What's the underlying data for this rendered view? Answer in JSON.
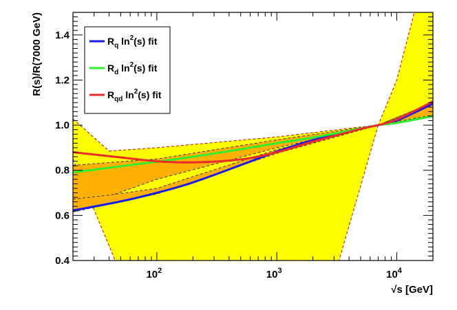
{
  "chart_data": {
    "type": "line",
    "title": "",
    "xlabel": "√s [GeV]",
    "ylabel": "R(s)/R(7000 GeV)",
    "xscale": "log",
    "xlim": [
      20,
      20000
    ],
    "ylim": [
      0.4,
      1.5
    ],
    "x_ticks": [
      {
        "value": 100,
        "base": "10",
        "exp": "2"
      },
      {
        "value": 1000,
        "base": "10",
        "exp": "3"
      },
      {
        "value": 10000,
        "base": "10",
        "exp": "4"
      }
    ],
    "y_ticks": [
      "0.4",
      "0.6",
      "0.8",
      "1.0",
      "1.2",
      "1.4"
    ],
    "legend_position": "top-left",
    "legend": [
      {
        "base": "R",
        "sub": "q",
        "text": "ln",
        "sup": "2",
        "tail": "(s) fit",
        "color": "#1a1aee"
      },
      {
        "base": "R",
        "sub": "d",
        "text": "ln",
        "sup": "2",
        "tail": "(s) fit",
        "color": "#2eee2e"
      },
      {
        "base": "R",
        "sub": "qd",
        "text": "ln",
        "sup": "2",
        "tail": "(s) fit",
        "color": "#ee2a2a"
      }
    ],
    "series": [
      {
        "name": "R_q ln²(s) fit",
        "color": "#1a1aee",
        "x": [
          20,
          50,
          100,
          200,
          500,
          1000,
          2000,
          5000,
          7000,
          10000,
          20000
        ],
        "y": [
          0.622,
          0.662,
          0.7,
          0.746,
          0.823,
          0.883,
          0.934,
          0.985,
          1.0,
          1.02,
          1.095
        ]
      },
      {
        "name": "R_d ln²(s) fit",
        "color": "#2eee2e",
        "x": [
          20,
          50,
          100,
          200,
          500,
          1000,
          2000,
          5000,
          7000,
          10000,
          20000
        ],
        "y": [
          0.79,
          0.818,
          0.838,
          0.86,
          0.893,
          0.92,
          0.945,
          0.985,
          1.0,
          1.01,
          1.04
        ]
      },
      {
        "name": "R_qd ln²(s) fit",
        "color": "#ee2a2a",
        "x": [
          20,
          50,
          100,
          200,
          500,
          1000,
          2000,
          5000,
          7000,
          10000,
          20000
        ],
        "y": [
          0.88,
          0.857,
          0.84,
          0.835,
          0.848,
          0.88,
          0.927,
          0.983,
          1.0,
          1.025,
          1.105
        ]
      }
    ],
    "bands": [
      {
        "color": "#ffff00",
        "edge_color": "#cc0000",
        "upper": [
          [
            20,
            1.028
          ],
          [
            40,
            0.885
          ],
          [
            100,
            0.9
          ],
          [
            1000,
            0.948
          ],
          [
            5000,
            0.992
          ],
          [
            7000,
            1.0
          ],
          [
            10000,
            1.2
          ],
          [
            14000,
            1.5
          ],
          [
            20000,
            1.5
          ]
        ],
        "lower": [
          [
            20,
            0.85
          ],
          [
            45,
            0.4
          ],
          [
            3300,
            0.4
          ],
          [
            7000,
            1.0
          ],
          [
            20000,
            1.04
          ]
        ]
      },
      {
        "color": "#ffb000",
        "edge_color": "#333333",
        "upper": [
          [
            20,
            0.822
          ],
          [
            100,
            0.85
          ],
          [
            1000,
            0.935
          ],
          [
            7000,
            1.0
          ],
          [
            20000,
            1.1
          ]
        ],
        "lower": [
          [
            20,
            0.64
          ],
          [
            40,
            0.685
          ],
          [
            100,
            0.76
          ],
          [
            1000,
            0.9
          ],
          [
            7000,
            1.0
          ],
          [
            20000,
            1.045
          ]
        ]
      },
      {
        "color": "#ffb000",
        "edge_color": "#333333",
        "upper": [
          [
            20,
            0.672
          ],
          [
            40,
            0.69
          ],
          [
            100,
            0.72
          ],
          [
            1000,
            0.892
          ],
          [
            7000,
            1.0
          ],
          [
            20000,
            1.1
          ]
        ],
        "lower": [
          [
            20,
            0.615
          ],
          [
            100,
            0.695
          ],
          [
            1000,
            0.875
          ],
          [
            7000,
            1.0
          ],
          [
            20000,
            1.09
          ]
        ]
      }
    ]
  }
}
